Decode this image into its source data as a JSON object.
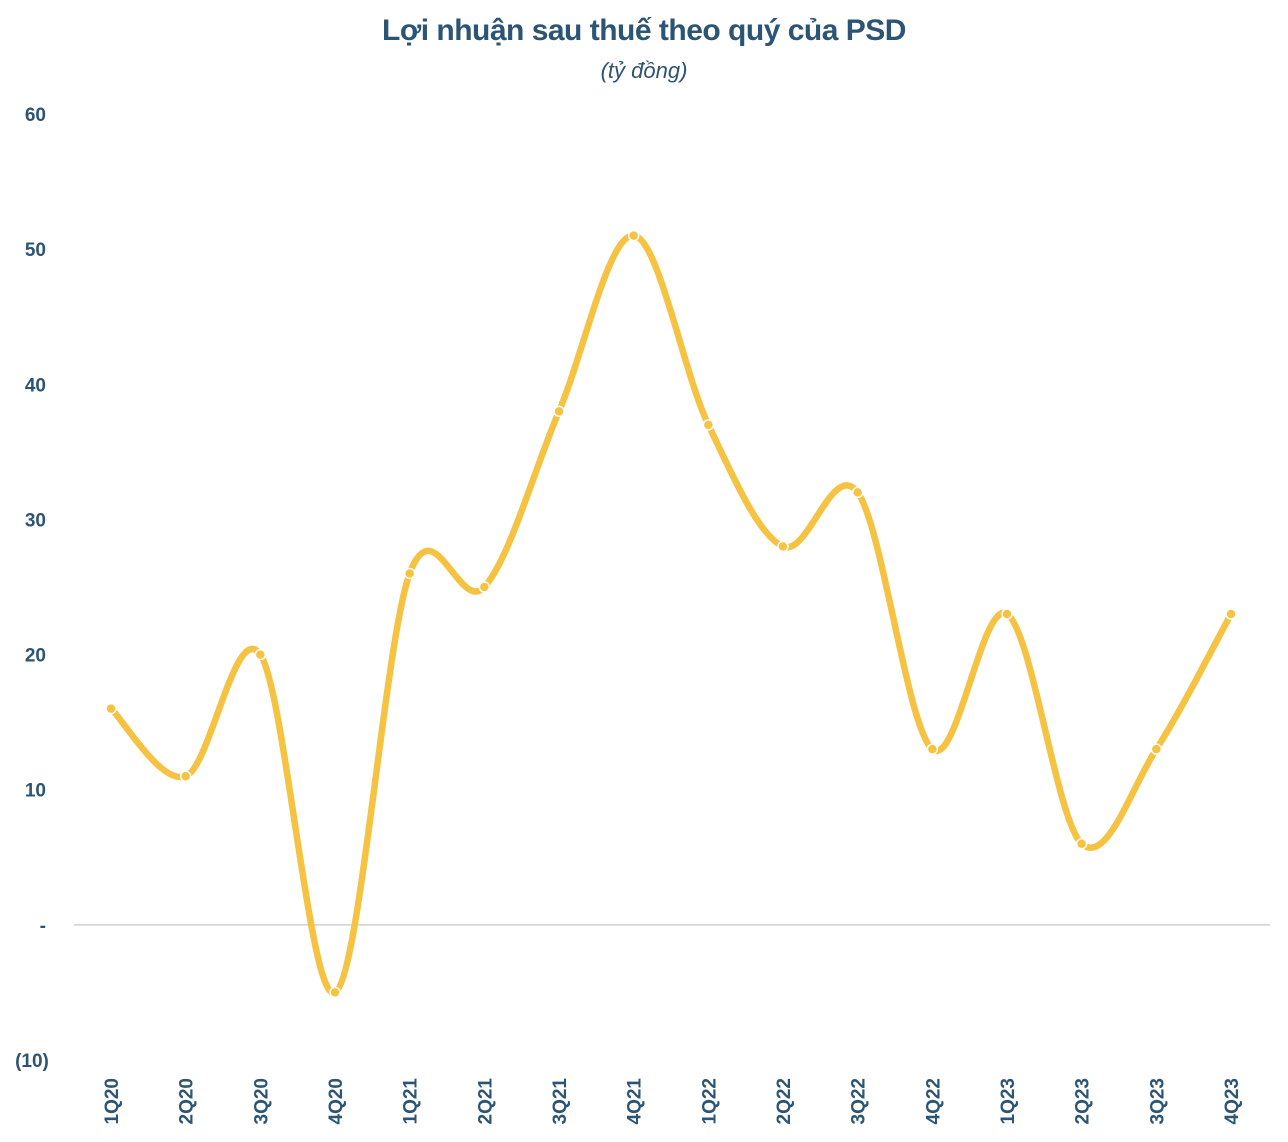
{
  "chart_data": {
    "type": "line",
    "title": "Lợi nhuận sau thuế theo quý của PSD",
    "subtitle": "(tỷ đồng)",
    "xlabel": "",
    "ylabel": "",
    "categories": [
      "1Q20",
      "2Q20",
      "3Q20",
      "4Q20",
      "1Q21",
      "2Q21",
      "3Q21",
      "4Q21",
      "1Q22",
      "2Q22",
      "3Q22",
      "4Q22",
      "1Q23",
      "2Q23",
      "3Q23",
      "4Q23"
    ],
    "series": [
      {
        "name": "Lợi nhuận sau thuế",
        "values": [
          16,
          11,
          20,
          -5,
          26,
          25,
          38,
          51,
          37,
          28,
          32,
          13,
          23,
          6,
          13,
          23
        ]
      }
    ],
    "ylim": [
      -10,
      60
    ],
    "yticks": [
      -10,
      0,
      10,
      20,
      30,
      40,
      50,
      60
    ],
    "ytick_labels": [
      "(10)",
      "-",
      "10",
      "20",
      "30",
      "40",
      "50",
      "60"
    ],
    "grid": false,
    "smooth": true,
    "colors": {
      "line": "#f5c242",
      "axis": "#d0d0d0",
      "text": "#2c5474",
      "marker_edge": "#ffffff"
    }
  }
}
